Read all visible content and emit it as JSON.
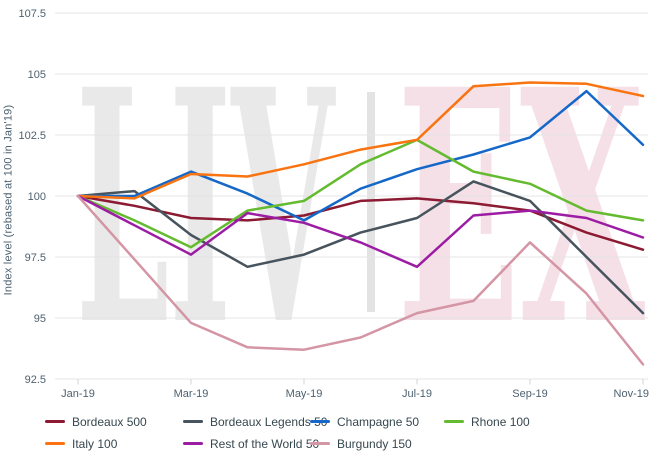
{
  "watermark": {
    "left_text": "LIV",
    "right_text": "EX",
    "left_color": "#e9e9e9",
    "bar_color": "#e3e3e3",
    "right_color": "#f5e0e7"
  },
  "chart_data": {
    "type": "line",
    "title": "",
    "ylabel": "Index level (rebased at 100 in Jan'19)",
    "xlabel": "",
    "grid": "horizontal",
    "legend_position": "bottom",
    "ylim": [
      92.5,
      107.5
    ],
    "y_ticks": [
      107.5,
      105,
      102.5,
      100,
      97.5,
      95,
      92.5
    ],
    "x": [
      "Jan-19",
      "Feb-19",
      "Mar-19",
      "Apr-19",
      "May-19",
      "Jun-19",
      "Jul-19",
      "Aug-19",
      "Sep-19",
      "Oct-19",
      "Nov-19"
    ],
    "x_tick_labels": [
      "Jan-19",
      "Mar-19",
      "May-19",
      "Jul-19",
      "Sep-19",
      "Nov-19"
    ],
    "series": [
      {
        "name": "Bordeaux 500",
        "color": "#8b1a32",
        "values": [
          100,
          99.6,
          99.1,
          99.0,
          99.2,
          99.8,
          99.9,
          99.7,
          99.4,
          98.5,
          97.8
        ]
      },
      {
        "name": "Bordeaux Legends 50",
        "color": "#47545e",
        "values": [
          100,
          100.2,
          98.4,
          97.1,
          97.6,
          98.5,
          99.1,
          100.6,
          99.8,
          97.5,
          95.2
        ]
      },
      {
        "name": "Champagne 50",
        "color": "#1668c8",
        "values": [
          100,
          100.0,
          101.0,
          100.1,
          99.0,
          100.3,
          101.1,
          101.7,
          102.4,
          104.3,
          102.1
        ]
      },
      {
        "name": "Rhone 100",
        "color": "#65bb2f",
        "values": [
          100,
          99.0,
          97.9,
          99.4,
          99.8,
          101.3,
          102.3,
          101.0,
          100.5,
          99.4,
          99.0
        ]
      },
      {
        "name": "Italy 100",
        "color": "#f97410",
        "values": [
          100,
          99.9,
          100.9,
          100.8,
          101.3,
          101.9,
          102.3,
          104.5,
          104.65,
          104.6,
          104.1
        ]
      },
      {
        "name": "Rest of the World 50",
        "color": "#9c1da4",
        "values": [
          100,
          98.8,
          97.6,
          99.3,
          98.9,
          98.1,
          97.1,
          99.2,
          99.4,
          99.1,
          98.3
        ]
      },
      {
        "name": "Burgundy 150",
        "color": "#d495a4",
        "values": [
          100,
          97.4,
          94.8,
          93.8,
          93.7,
          94.2,
          95.2,
          95.7,
          98.1,
          96.0,
          93.1
        ]
      }
    ]
  },
  "style": {
    "grid_color": "#e4e4e4",
    "tick_color": "#cfd6da",
    "axis_text_color": "#4d6170"
  }
}
